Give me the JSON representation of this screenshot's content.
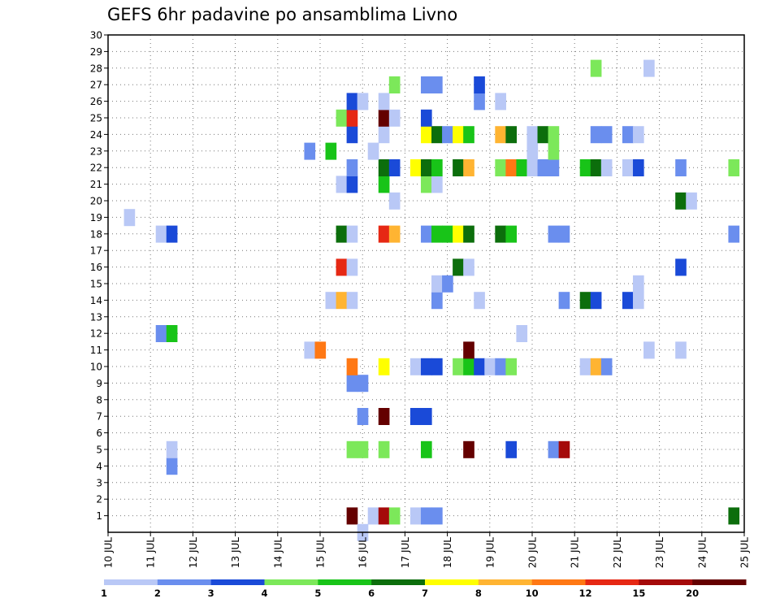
{
  "chart_data": {
    "type": "heatmap",
    "title": "GEFS 6hr padavine po ansamblima Livno",
    "x_tick_labels": [
      "10 JUL",
      "11 JUL",
      "12 JUL",
      "13 JUL",
      "14 JUL",
      "15 JUL",
      "16 JUL",
      "17 JUL",
      "18 JUL",
      "19 JUL",
      "20 JUL",
      "21 JUL",
      "22 JUL",
      "23 JUL",
      "24 JUL",
      "25 JUL"
    ],
    "y_tick_labels": [
      "1",
      "2",
      "3",
      "4",
      "5",
      "6",
      "7",
      "8",
      "9",
      "10",
      "11",
      "12",
      "13",
      "14",
      "15",
      "16",
      "17",
      "18",
      "19",
      "20",
      "21",
      "22",
      "23",
      "24",
      "25",
      "26",
      "27",
      "28",
      "29",
      "30"
    ],
    "x_range_days": [
      10,
      25
    ],
    "y_range": [
      0,
      30
    ],
    "grid": true,
    "legend_position": "bottom",
    "colorbar": {
      "labels": [
        "1",
        "2",
        "3",
        "4",
        "5",
        "6",
        "7",
        "8",
        "10",
        "12",
        "15",
        "20"
      ],
      "colors": [
        "#b9c8f6",
        "#6a8eee",
        "#1a4ad8",
        "#7ce85a",
        "#18c418",
        "#0c6e0c",
        "#ffff00",
        "#ffb432",
        "#ff7814",
        "#e62814",
        "#a50a0a",
        "#640000"
      ]
    },
    "cells": [
      [
        15.75,
        1,
        "#640000"
      ],
      [
        16.25,
        1,
        "#b9c8f6"
      ],
      [
        16.5,
        1,
        "#a50a0a"
      ],
      [
        16.75,
        1,
        "#7ce85a"
      ],
      [
        17.25,
        1,
        "#b9c8f6"
      ],
      [
        17.5,
        1,
        "#6a8eee"
      ],
      [
        17.75,
        1,
        "#6a8eee"
      ],
      [
        24.75,
        1,
        "#0c6e0c"
      ],
      [
        16,
        0,
        "#b9c8f6"
      ],
      [
        11.5,
        4,
        "#6a8eee"
      ],
      [
        11.5,
        5,
        "#b9c8f6"
      ],
      [
        15.75,
        5,
        "#7ce85a"
      ],
      [
        16,
        5,
        "#7ce85a"
      ],
      [
        16.5,
        5,
        "#7ce85a"
      ],
      [
        17.5,
        5,
        "#18c418"
      ],
      [
        18.5,
        5,
        "#640000"
      ],
      [
        19.5,
        5,
        "#1a4ad8"
      ],
      [
        20.5,
        5,
        "#6a8eee"
      ],
      [
        20.75,
        5,
        "#a50a0a"
      ],
      [
        16,
        7,
        "#6a8eee"
      ],
      [
        16.5,
        7,
        "#640000"
      ],
      [
        17.25,
        7,
        "#1a4ad8"
      ],
      [
        17.5,
        7,
        "#1a4ad8"
      ],
      [
        15.75,
        9,
        "#6a8eee"
      ],
      [
        16,
        9,
        "#6a8eee"
      ],
      [
        15.75,
        10,
        "#ff7814"
      ],
      [
        16.5,
        10,
        "#ffff00"
      ],
      [
        17.25,
        10,
        "#b9c8f6"
      ],
      [
        17.5,
        10,
        "#1a4ad8"
      ],
      [
        17.75,
        10,
        "#1a4ad8"
      ],
      [
        18.25,
        10,
        "#7ce85a"
      ],
      [
        18.5,
        10,
        "#18c418"
      ],
      [
        18.75,
        10,
        "#1a4ad8"
      ],
      [
        19,
        10,
        "#b9c8f6"
      ],
      [
        19.25,
        10,
        "#6a8eee"
      ],
      [
        19.5,
        10,
        "#7ce85a"
      ],
      [
        21.25,
        10,
        "#b9c8f6"
      ],
      [
        21.5,
        10,
        "#ffb432"
      ],
      [
        21.75,
        10,
        "#6a8eee"
      ],
      [
        14.75,
        11,
        "#b9c8f6"
      ],
      [
        15,
        11,
        "#ff7814"
      ],
      [
        18.5,
        11,
        "#640000"
      ],
      [
        22.75,
        11,
        "#b9c8f6"
      ],
      [
        23.5,
        11,
        "#b9c8f6"
      ],
      [
        11.25,
        12,
        "#6a8eee"
      ],
      [
        11.5,
        12,
        "#18c418"
      ],
      [
        19.75,
        12,
        "#b9c8f6"
      ],
      [
        15.25,
        14,
        "#b9c8f6"
      ],
      [
        15.5,
        14,
        "#ffb432"
      ],
      [
        15.75,
        14,
        "#b9c8f6"
      ],
      [
        17.75,
        14,
        "#6a8eee"
      ],
      [
        18.75,
        14,
        "#b9c8f6"
      ],
      [
        20.75,
        14,
        "#6a8eee"
      ],
      [
        21.25,
        14,
        "#0c6e0c"
      ],
      [
        21.5,
        14,
        "#1a4ad8"
      ],
      [
        22.25,
        14,
        "#1a4ad8"
      ],
      [
        22.5,
        14,
        "#b9c8f6"
      ],
      [
        17.75,
        15,
        "#b9c8f6"
      ],
      [
        18,
        15,
        "#6a8eee"
      ],
      [
        22.5,
        15,
        "#b9c8f6"
      ],
      [
        15.5,
        16,
        "#e62814"
      ],
      [
        15.75,
        16,
        "#b9c8f6"
      ],
      [
        18.25,
        16,
        "#0c6e0c"
      ],
      [
        18.5,
        16,
        "#b9c8f6"
      ],
      [
        23.5,
        16,
        "#1a4ad8"
      ],
      [
        11.25,
        18,
        "#b9c8f6"
      ],
      [
        11.5,
        18,
        "#1a4ad8"
      ],
      [
        15.5,
        18,
        "#0c6e0c"
      ],
      [
        15.75,
        18,
        "#b9c8f6"
      ],
      [
        16.5,
        18,
        "#e62814"
      ],
      [
        16.75,
        18,
        "#ffb432"
      ],
      [
        17.5,
        18,
        "#6a8eee"
      ],
      [
        17.75,
        18,
        "#18c418"
      ],
      [
        18,
        18,
        "#18c418"
      ],
      [
        18.25,
        18,
        "#ffff00"
      ],
      [
        18.5,
        18,
        "#0c6e0c"
      ],
      [
        19.25,
        18,
        "#0c6e0c"
      ],
      [
        19.5,
        18,
        "#18c418"
      ],
      [
        20.5,
        18,
        "#6a8eee"
      ],
      [
        20.75,
        18,
        "#6a8eee"
      ],
      [
        24.75,
        18,
        "#6a8eee"
      ],
      [
        10.5,
        19,
        "#b9c8f6"
      ],
      [
        16.75,
        20,
        "#b9c8f6"
      ],
      [
        23.5,
        20,
        "#0c6e0c"
      ],
      [
        23.75,
        20,
        "#b9c8f6"
      ],
      [
        15.5,
        21,
        "#b9c8f6"
      ],
      [
        15.75,
        21,
        "#1a4ad8"
      ],
      [
        16.5,
        21,
        "#18c418"
      ],
      [
        17.5,
        21,
        "#7ce85a"
      ],
      [
        17.75,
        21,
        "#b9c8f6"
      ],
      [
        15.75,
        22,
        "#6a8eee"
      ],
      [
        16.5,
        22,
        "#0c6e0c"
      ],
      [
        16.75,
        22,
        "#1a4ad8"
      ],
      [
        17.25,
        22,
        "#ffff00"
      ],
      [
        17.5,
        22,
        "#0c6e0c"
      ],
      [
        17.75,
        22,
        "#18c418"
      ],
      [
        18.25,
        22,
        "#0c6e0c"
      ],
      [
        18.5,
        22,
        "#ffb432"
      ],
      [
        19.25,
        22,
        "#7ce85a"
      ],
      [
        19.5,
        22,
        "#ff7814"
      ],
      [
        19.75,
        22,
        "#18c418"
      ],
      [
        20,
        22,
        "#b9c8f6"
      ],
      [
        20.25,
        22,
        "#6a8eee"
      ],
      [
        20.5,
        22,
        "#6a8eee"
      ],
      [
        21.25,
        22,
        "#18c418"
      ],
      [
        21.5,
        22,
        "#0c6e0c"
      ],
      [
        21.75,
        22,
        "#b9c8f6"
      ],
      [
        22.25,
        22,
        "#b9c8f6"
      ],
      [
        22.5,
        22,
        "#1a4ad8"
      ],
      [
        23.5,
        22,
        "#6a8eee"
      ],
      [
        24.75,
        22,
        "#7ce85a"
      ],
      [
        14.75,
        23,
        "#6a8eee"
      ],
      [
        15.25,
        23,
        "#18c418"
      ],
      [
        16.25,
        23,
        "#b9c8f6"
      ],
      [
        20,
        23,
        "#b9c8f6"
      ],
      [
        20.5,
        23,
        "#7ce85a"
      ],
      [
        15.75,
        24,
        "#1a4ad8"
      ],
      [
        16.5,
        24,
        "#b9c8f6"
      ],
      [
        17.5,
        24,
        "#ffff00"
      ],
      [
        17.75,
        24,
        "#0c6e0c"
      ],
      [
        18,
        24,
        "#6a8eee"
      ],
      [
        18.25,
        24,
        "#ffff00"
      ],
      [
        18.5,
        24,
        "#18c418"
      ],
      [
        19.25,
        24,
        "#ffb432"
      ],
      [
        19.5,
        24,
        "#0c6e0c"
      ],
      [
        20,
        24,
        "#b9c8f6"
      ],
      [
        20.25,
        24,
        "#0c6e0c"
      ],
      [
        20.5,
        24,
        "#7ce85a"
      ],
      [
        21.5,
        24,
        "#6a8eee"
      ],
      [
        21.75,
        24,
        "#6a8eee"
      ],
      [
        22.25,
        24,
        "#6a8eee"
      ],
      [
        22.5,
        24,
        "#b9c8f6"
      ],
      [
        15.5,
        25,
        "#7ce85a"
      ],
      [
        15.75,
        25,
        "#e62814"
      ],
      [
        16.5,
        25,
        "#640000"
      ],
      [
        16.75,
        25,
        "#b9c8f6"
      ],
      [
        17.5,
        25,
        "#1a4ad8"
      ],
      [
        15.75,
        26,
        "#1a4ad8"
      ],
      [
        16,
        26,
        "#b9c8f6"
      ],
      [
        16.5,
        26,
        "#b9c8f6"
      ],
      [
        18.75,
        26,
        "#6a8eee"
      ],
      [
        19.25,
        26,
        "#b9c8f6"
      ],
      [
        16.75,
        27,
        "#7ce85a"
      ],
      [
        17.5,
        27,
        "#6a8eee"
      ],
      [
        17.75,
        27,
        "#6a8eee"
      ],
      [
        18.75,
        27,
        "#1a4ad8"
      ],
      [
        21.5,
        28,
        "#7ce85a"
      ],
      [
        22.75,
        28,
        "#b9c8f6"
      ]
    ]
  }
}
